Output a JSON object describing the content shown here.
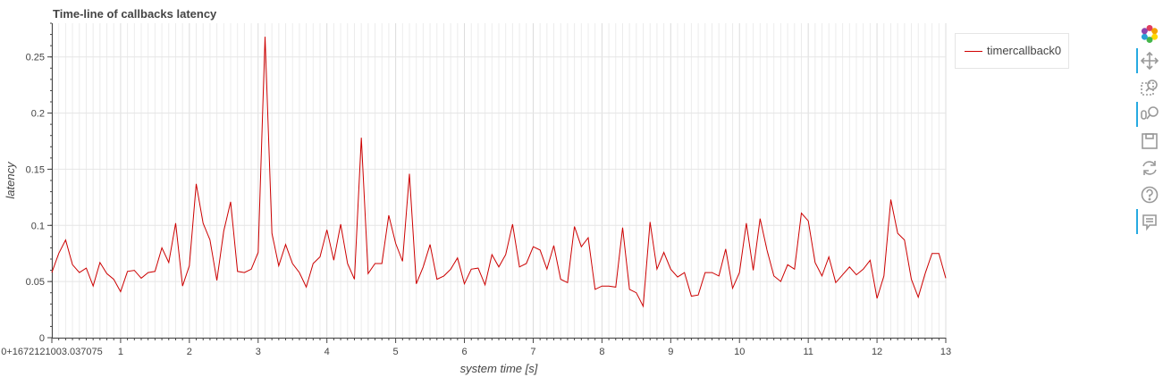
{
  "chart_data": {
    "type": "line",
    "title": "Time-line of callbacks latency",
    "xlabel": "system time [s]",
    "ylabel": "latency",
    "xlim": [
      0,
      13
    ],
    "ylim": [
      0,
      0.28
    ],
    "x_offset_label": "0+1672121003.037075",
    "x_ticks": [
      "1",
      "2",
      "3",
      "4",
      "5",
      "6",
      "7",
      "8",
      "9",
      "10",
      "11",
      "12",
      "13"
    ],
    "y_ticks": [
      "0",
      "0.05",
      "0.1",
      "0.15",
      "0.2",
      "0.25"
    ],
    "grid": true,
    "legend_position": "top-right outside",
    "series": [
      {
        "name": "timercallback0",
        "color": "#cc0000",
        "x": [
          0,
          0.1,
          0.2,
          0.3,
          0.4,
          0.5,
          0.6,
          0.7,
          0.8,
          0.9,
          1.0,
          1.1,
          1.2,
          1.3,
          1.4,
          1.5,
          1.6,
          1.7,
          1.8,
          1.9,
          2.0,
          2.1,
          2.2,
          2.3,
          2.4,
          2.5,
          2.6,
          2.7,
          2.8,
          2.9,
          3.0,
          3.1,
          3.2,
          3.3,
          3.4,
          3.5,
          3.6,
          3.7,
          3.8,
          3.9,
          4.0,
          4.1,
          4.2,
          4.3,
          4.4,
          4.5,
          4.6,
          4.7,
          4.8,
          4.9,
          5.0,
          5.1,
          5.2,
          5.3,
          5.4,
          5.5,
          5.6,
          5.7,
          5.8,
          5.9,
          6.0,
          6.1,
          6.2,
          6.3,
          6.4,
          6.5,
          6.6,
          6.7,
          6.8,
          6.9,
          7.0,
          7.1,
          7.2,
          7.3,
          7.4,
          7.5,
          7.6,
          7.7,
          7.8,
          7.9,
          8.0,
          8.1,
          8.2,
          8.3,
          8.4,
          8.5,
          8.6,
          8.7,
          8.8,
          8.9,
          9.0,
          9.1,
          9.2,
          9.3,
          9.4,
          9.5,
          9.6,
          9.7,
          9.8,
          9.9,
          10.0,
          10.1,
          10.2,
          10.3,
          10.4,
          10.5,
          10.6,
          10.7,
          10.8,
          10.9,
          11.0,
          11.1,
          11.2,
          11.3,
          11.4,
          11.5,
          11.6,
          11.7,
          11.8,
          11.9,
          12.0,
          12.1,
          12.2,
          12.3,
          12.4,
          12.5,
          12.6,
          12.7,
          12.8,
          12.9,
          13.0
        ],
        "values": [
          0.058,
          0.075,
          0.087,
          0.065,
          0.058,
          0.062,
          0.046,
          0.067,
          0.057,
          0.052,
          0.041,
          0.059,
          0.06,
          0.053,
          0.058,
          0.059,
          0.08,
          0.067,
          0.102,
          0.046,
          0.064,
          0.137,
          0.102,
          0.087,
          0.051,
          0.095,
          0.121,
          0.059,
          0.058,
          0.061,
          0.076,
          0.268,
          0.093,
          0.064,
          0.083,
          0.066,
          0.058,
          0.045,
          0.066,
          0.072,
          0.096,
          0.069,
          0.101,
          0.066,
          0.052,
          0.178,
          0.057,
          0.066,
          0.066,
          0.109,
          0.084,
          0.068,
          0.146,
          0.048,
          0.063,
          0.083,
          0.052,
          0.055,
          0.061,
          0.071,
          0.048,
          0.061,
          0.062,
          0.047,
          0.074,
          0.063,
          0.074,
          0.101,
          0.063,
          0.066,
          0.081,
          0.078,
          0.061,
          0.082,
          0.052,
          0.049,
          0.099,
          0.081,
          0.089,
          0.043,
          0.046,
          0.046,
          0.045,
          0.098,
          0.043,
          0.04,
          0.028,
          0.103,
          0.061,
          0.076,
          0.061,
          0.054,
          0.058,
          0.037,
          0.038,
          0.058,
          0.058,
          0.055,
          0.079,
          0.044,
          0.058,
          0.102,
          0.06,
          0.106,
          0.078,
          0.055,
          0.05,
          0.065,
          0.061,
          0.111,
          0.104,
          0.067,
          0.055,
          0.072,
          0.049,
          0.056,
          0.063,
          0.056,
          0.061,
          0.069,
          0.035,
          0.055,
          0.123,
          0.093,
          0.087,
          0.052,
          0.036,
          0.057,
          0.075,
          0.075,
          0.053
        ]
      }
    ]
  },
  "toolbar": {
    "icons": [
      "bokeh-logo-icon",
      "pan-icon",
      "box-zoom-icon",
      "wheel-zoom-icon",
      "save-icon",
      "reset-icon",
      "help-icon",
      "hover-icon"
    ],
    "active": [
      "pan-icon",
      "wheel-zoom-icon",
      "hover-icon"
    ]
  }
}
